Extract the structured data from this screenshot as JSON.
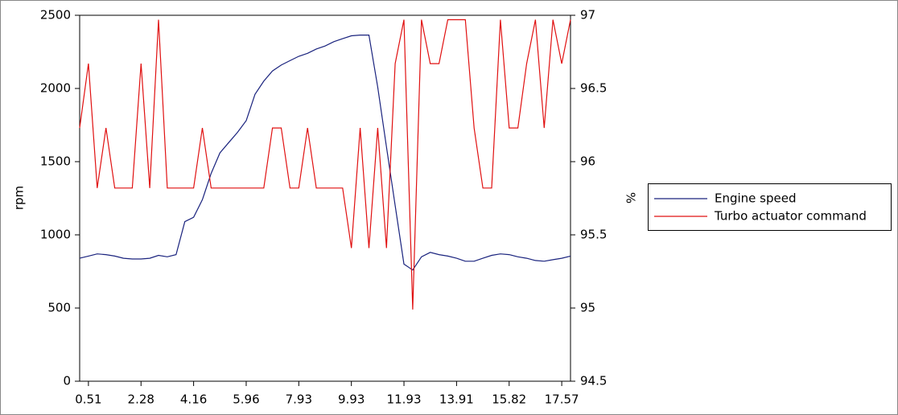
{
  "chart_data": {
    "type": "line",
    "categories": [
      null,
      "0.51",
      null,
      null,
      null,
      null,
      null,
      "2.28",
      null,
      null,
      null,
      null,
      null,
      "4.16",
      null,
      null,
      null,
      null,
      null,
      "5.96",
      null,
      null,
      null,
      null,
      null,
      "7.93",
      null,
      null,
      null,
      null,
      null,
      "9.93",
      null,
      null,
      null,
      null,
      null,
      "11.93",
      null,
      null,
      null,
      null,
      null,
      "13.91",
      null,
      null,
      null,
      null,
      null,
      "15.82",
      null,
      null,
      null,
      null,
      null,
      "17.57",
      null
    ],
    "ylabel": "rpm",
    "y2label": "%",
    "ylim": [
      0,
      2500
    ],
    "yticks": [
      0,
      500,
      1000,
      1500,
      2000,
      2500
    ],
    "y2lim": [
      94.5,
      97
    ],
    "y2ticks": [
      94.5,
      95,
      95.5,
      96,
      96.5,
      97
    ],
    "legend": "right",
    "series": [
      {
        "name": "Engine speed",
        "color": "#1a237e",
        "values": [
          840,
          855,
          870,
          865,
          855,
          840,
          835,
          835,
          840,
          860,
          850,
          865,
          1090,
          1120,
          1240,
          1420,
          1560,
          1630,
          1700,
          1780,
          1960,
          2050,
          2120,
          2160,
          2190,
          2220,
          2240,
          2270,
          2290,
          2320,
          2340,
          2360,
          2365,
          2365,
          2010,
          1600,
          1200,
          800,
          760,
          850,
          880,
          865,
          855,
          840,
          820,
          820,
          840,
          860,
          870,
          865,
          850,
          840,
          825,
          820,
          830,
          840,
          855
        ]
      },
      {
        "name": "Turbo actuator command",
        "color": "#e01010",
        "axis": "y2",
        "values": [
          96.23,
          96.67,
          95.82,
          96.23,
          95.82,
          95.82,
          95.82,
          96.67,
          95.82,
          96.97,
          95.82,
          95.82,
          95.82,
          95.82,
          96.23,
          95.82,
          95.82,
          95.82,
          95.82,
          95.82,
          95.82,
          95.82,
          96.23,
          96.23,
          95.82,
          95.82,
          96.23,
          95.82,
          95.82,
          95.82,
          95.82,
          95.41,
          96.23,
          95.41,
          96.23,
          95.41,
          96.67,
          96.97,
          94.99,
          96.97,
          96.67,
          96.67,
          96.97,
          96.97,
          96.97,
          96.23,
          95.82,
          95.82,
          96.97,
          96.23,
          96.23,
          96.67,
          96.97,
          96.23,
          96.97,
          96.67,
          96.97
        ]
      }
    ]
  }
}
